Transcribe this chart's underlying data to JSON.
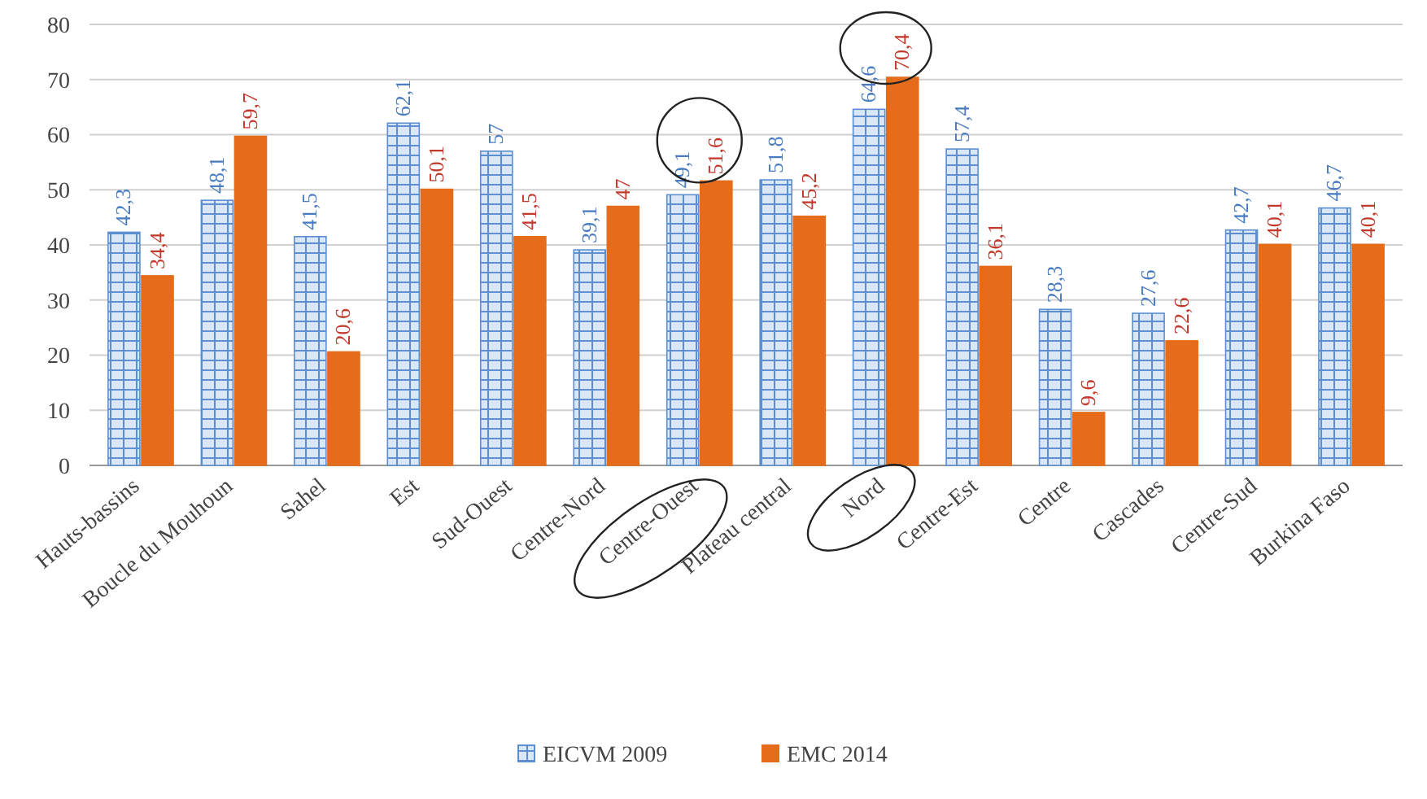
{
  "chart_data": {
    "type": "bar",
    "categories": [
      "Hauts-bassins",
      "Boucle du Mouhoun",
      "Sahel",
      "Est",
      "Sud-Ouest",
      "Centre-Nord",
      "Centre-Ouest",
      "Plateau central",
      "Nord",
      "Centre-Est",
      "Centre",
      "Cascades",
      "Centre-Sud",
      "Burkina Faso"
    ],
    "series": [
      {
        "name": "EICVM 2009",
        "color": "#5b8fd0",
        "values": [
          42.3,
          48.1,
          41.5,
          62.1,
          57,
          39.1,
          49.1,
          51.8,
          64.6,
          57.4,
          28.3,
          27.6,
          42.7,
          46.7
        ],
        "value_labels": [
          "42,3",
          "48,1",
          "41,5",
          "62,1",
          "57",
          "39,1",
          "49,1",
          "51,8",
          "64,6",
          "57,4",
          "28,3",
          "27,6",
          "42,7",
          "46,7"
        ]
      },
      {
        "name": "EMC 2014",
        "color": "#e46c1a",
        "values": [
          34.4,
          59.7,
          20.6,
          50.1,
          41.5,
          47,
          51.6,
          45.2,
          70.4,
          36.1,
          9.6,
          22.6,
          40.1,
          40.1
        ],
        "value_labels": [
          "34,4",
          "59,7",
          "20,6",
          "50,1",
          "41,5",
          "47",
          "51,6",
          "45,2",
          "70,4",
          "36,1",
          "9,6",
          "22,6",
          "40,1",
          "40,1"
        ]
      }
    ],
    "ylim": [
      0,
      80
    ],
    "yticks": [
      0,
      10,
      20,
      30,
      40,
      50,
      60,
      70,
      80
    ],
    "grid": "y",
    "legend": "bottom"
  }
}
